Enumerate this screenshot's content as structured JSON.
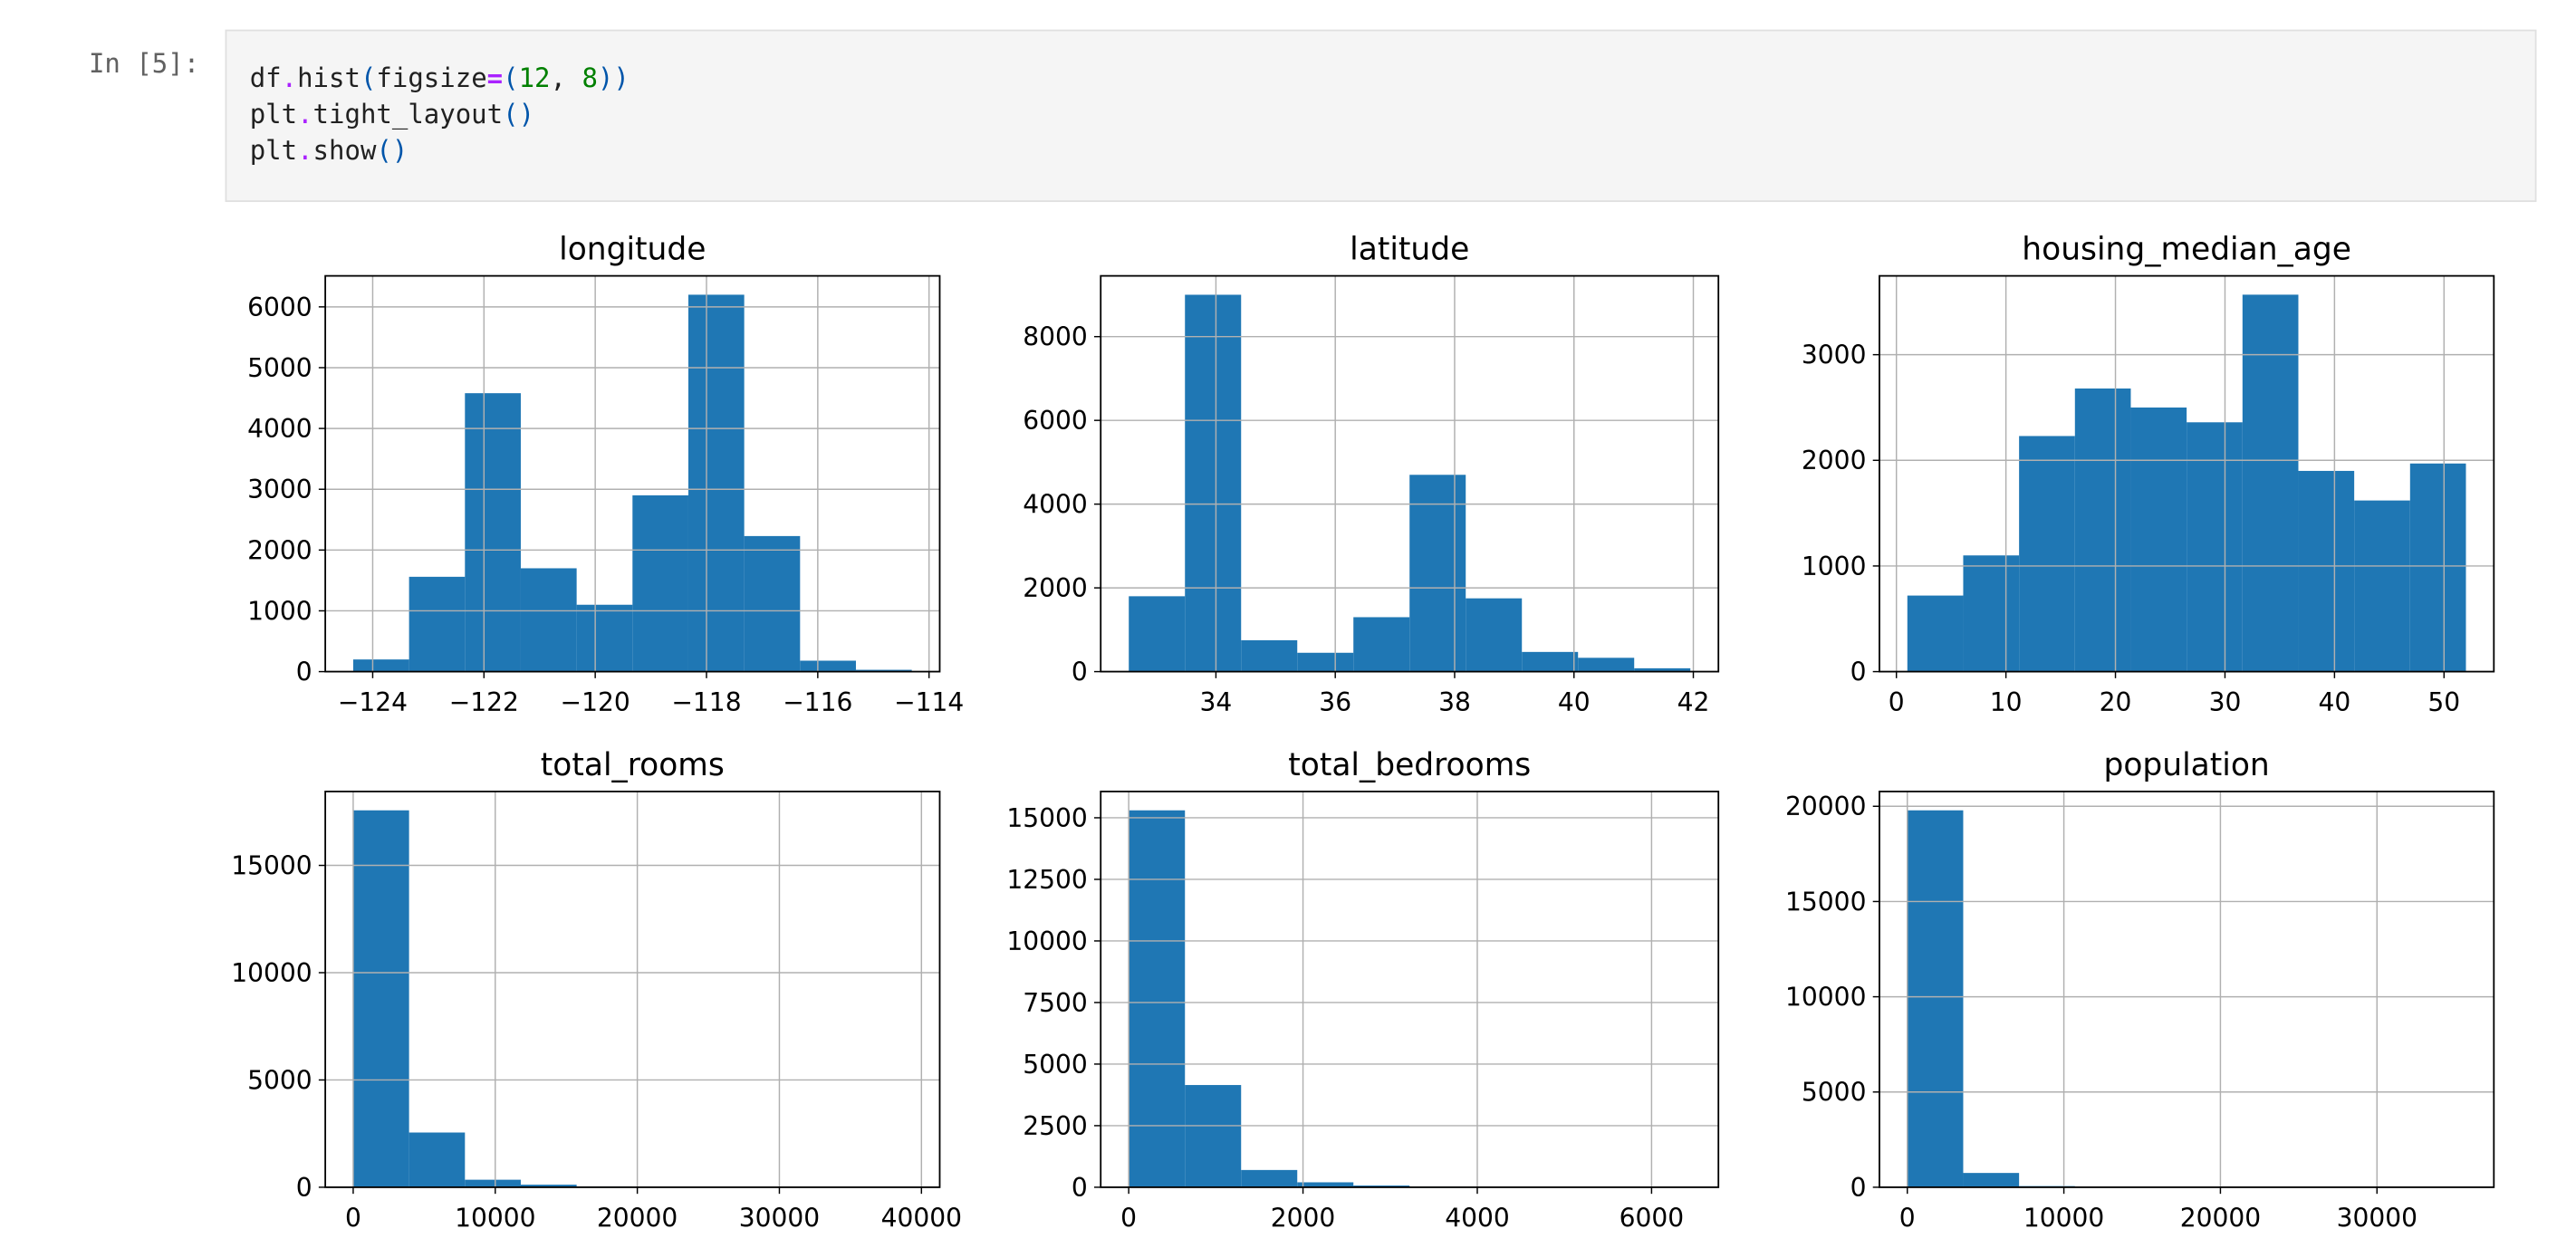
{
  "cell": {
    "prompt": "In [5]:",
    "code": [
      [
        "df",
        ".",
        "hist",
        "(",
        "figsize",
        "=",
        "(",
        "12",
        ", ",
        "8",
        ")",
        ")"
      ],
      [
        "plt",
        ".",
        "tight_layout",
        "(",
        ")"
      ],
      [
        "plt",
        ".",
        "show",
        "(",
        ")"
      ]
    ]
  },
  "chart_data": [
    {
      "type": "histogram",
      "title": "longitude",
      "color": "#1f77b4",
      "grid": true,
      "bins": [
        -124.35,
        -123.346,
        -122.342,
        -121.338,
        -120.334,
        -119.33,
        -118.326,
        -117.322,
        -116.318,
        -115.314,
        -114.31
      ],
      "values": [
        200,
        1560,
        4580,
        1700,
        1100,
        2900,
        6200,
        2230,
        180,
        30
      ],
      "xlim": [
        -124.852,
        -113.808
      ],
      "ylim": [
        0,
        6510
      ],
      "xticks": [
        {
          "value": -124,
          "label": "−124"
        },
        {
          "value": -122,
          "label": "−122"
        },
        {
          "value": -120,
          "label": "−120"
        },
        {
          "value": -118,
          "label": "−118"
        },
        {
          "value": -116,
          "label": "−116"
        },
        {
          "value": -114,
          "label": "−114"
        }
      ],
      "yticks": [
        0,
        1000,
        2000,
        3000,
        4000,
        5000,
        6000
      ]
    },
    {
      "type": "histogram",
      "title": "latitude",
      "color": "#1f77b4",
      "grid": true,
      "bins": [
        32.54,
        33.481,
        34.422,
        35.363,
        36.304,
        37.245,
        38.186,
        39.127,
        40.068,
        41.009,
        41.95
      ],
      "values": [
        1800,
        9000,
        750,
        450,
        1300,
        4700,
        1750,
        470,
        330,
        80
      ],
      "xlim": [
        32.0695,
        42.4205
      ],
      "ylim": [
        0,
        9451
      ],
      "xticks": [
        34,
        36,
        38,
        40,
        42
      ],
      "yticks": [
        0,
        2000,
        4000,
        6000,
        8000
      ]
    },
    {
      "type": "histogram",
      "title": "housing_median_age",
      "color": "#1f77b4",
      "grid": true,
      "bins": [
        1,
        6.1,
        11.2,
        16.3,
        21.4,
        26.5,
        31.6,
        36.7,
        41.8,
        46.9,
        52
      ],
      "values": [
        720,
        1100,
        2230,
        2680,
        2500,
        2360,
        3568,
        1900,
        1620,
        1970
      ],
      "xlim": [
        -1.55,
        54.55
      ],
      "ylim": [
        0,
        3746
      ],
      "xticks": [
        0,
        10,
        20,
        30,
        40,
        50
      ],
      "yticks": [
        0,
        1000,
        2000,
        3000
      ]
    },
    {
      "type": "histogram",
      "title": "total_rooms",
      "color": "#1f77b4",
      "grid": true,
      "bins": [
        2,
        3933.8,
        7865.6,
        11797.4,
        15729.2,
        19661,
        23592.8,
        27524.6,
        31456.4,
        35388.2,
        39320
      ],
      "values": [
        17566,
        2550,
        350,
        120,
        40,
        30,
        10,
        5,
        2,
        2
      ],
      "xlim": [
        -1963.9,
        41285.9
      ],
      "ylim": [
        0,
        18444
      ],
      "xticks": [
        0,
        10000,
        20000,
        30000,
        40000
      ],
      "yticks": [
        0,
        5000,
        10000,
        15000
      ]
    },
    {
      "type": "histogram",
      "title": "total_bedrooms",
      "color": "#1f77b4",
      "grid": true,
      "bins": [
        1,
        645.4,
        1289.8,
        1934.2,
        2578.6,
        3223,
        3867.4,
        4511.8,
        5156.2,
        5800.6,
        6445
      ],
      "values": [
        15302,
        4150,
        700,
        200,
        70,
        30,
        20,
        10,
        3,
        2
      ],
      "xlim": [
        -321.2,
        6767.2
      ],
      "ylim": [
        0,
        16067
      ],
      "xticks": [
        0,
        2000,
        4000,
        6000
      ],
      "yticks": [
        0,
        2500,
        5000,
        7500,
        10000,
        12500,
        15000
      ]
    },
    {
      "type": "histogram",
      "title": "population",
      "color": "#1f77b4",
      "grid": true,
      "bins": [
        3,
        3570.9,
        7138.8,
        10706.7,
        14274.6,
        17842.5,
        21410.4,
        24978.3,
        28546.2,
        32114.1,
        35682
      ],
      "values": [
        19787,
        750,
        60,
        15,
        5,
        2,
        0,
        1,
        0,
        1
      ],
      "xlim": [
        -1780.95,
        37465.95
      ],
      "ylim": [
        0,
        20776
      ],
      "xticks": [
        0,
        10000,
        20000,
        30000
      ],
      "yticks": [
        0,
        5000,
        10000,
        15000,
        20000
      ]
    }
  ]
}
